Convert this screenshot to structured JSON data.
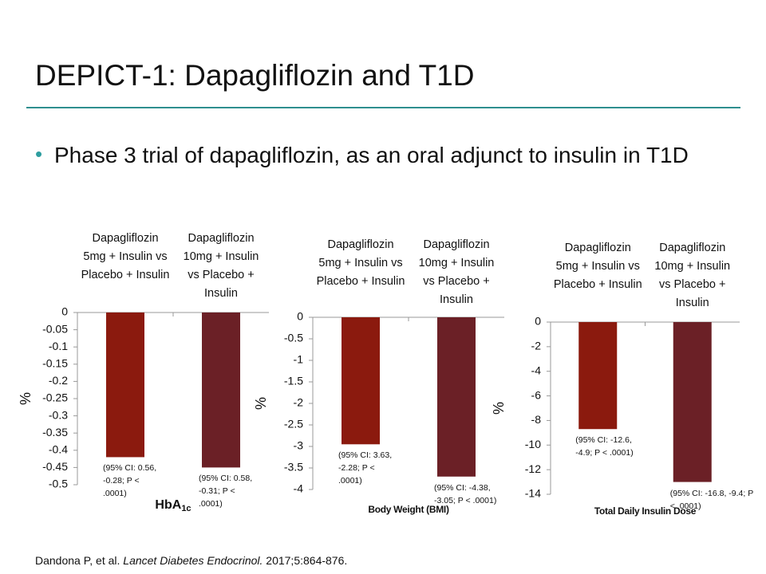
{
  "title": "DEPICT-1: Dapagliflozin and T1D",
  "bullet": "Phase 3 trial of dapagliflozin, as an oral adjunct to insulin in T1D",
  "citation": {
    "authors": "Dandona P, et al.",
    "journal": "Lancet Diabetes Endocrinol.",
    "details": "2017;5:864-876."
  },
  "chart_data": [
    {
      "type": "bar",
      "y_label": "%",
      "x_label": "HbA",
      "x_label_subscript": "1c",
      "categories": [
        "Dapagliflozin 5mg + Insulin vs Placebo + Insulin",
        "Dapagliflozin 10mg + Insulin vs Placebo + Insulin"
      ],
      "values": [
        -0.42,
        -0.45
      ],
      "colors": [
        "#8b1a0e",
        "#6b2026"
      ],
      "annotations": [
        "(95% CI: 0.56, -0.28; P < .0001)",
        "(95% CI: 0.58, -0.31; P < .0001)"
      ],
      "ylim": [
        -0.5,
        0
      ],
      "yticks": [
        0,
        -0.05,
        -0.1,
        -0.15,
        -0.2,
        -0.25,
        -0.3,
        -0.35,
        -0.4,
        -0.45,
        -0.5
      ]
    },
    {
      "type": "bar",
      "y_label": "%",
      "x_label": "Body Weight (BMI)",
      "categories": [
        "Dapagliflozin 5mg + Insulin vs Placebo + Insulin",
        "Dapagliflozin 10mg + Insulin vs Placebo + Insulin"
      ],
      "values": [
        -2.95,
        -3.7
      ],
      "colors": [
        "#8b1a0e",
        "#6b2026"
      ],
      "annotations": [
        "(95% CI: 3.63, -2.28; P < .0001)",
        "(95% CI: -4.38, -3.05; P < .0001)"
      ],
      "ylim": [
        -4,
        0
      ],
      "yticks": [
        0,
        -0.5,
        -1,
        -1.5,
        -2,
        -2.5,
        -3,
        -3.5,
        -4
      ]
    },
    {
      "type": "bar",
      "y_label": "%",
      "x_label": "Total Daily Insulin Dose",
      "categories": [
        "Dapagliflozin 5mg + Insulin vs Placebo + Insulin",
        "Dapagliflozin 10mg + Insulin vs Placebo + Insulin"
      ],
      "values": [
        -8.7,
        -13.0
      ],
      "colors": [
        "#8b1a0e",
        "#6b2026"
      ],
      "annotations": [
        "(95% CI: -12.6, -4.9; P < .0001)",
        "(95% CI: -16.8, -9.4; P < .0001)"
      ],
      "ylim": [
        -14,
        0
      ],
      "yticks": [
        0,
        -2,
        -4,
        -6,
        -8,
        -10,
        -12,
        -14
      ]
    }
  ]
}
